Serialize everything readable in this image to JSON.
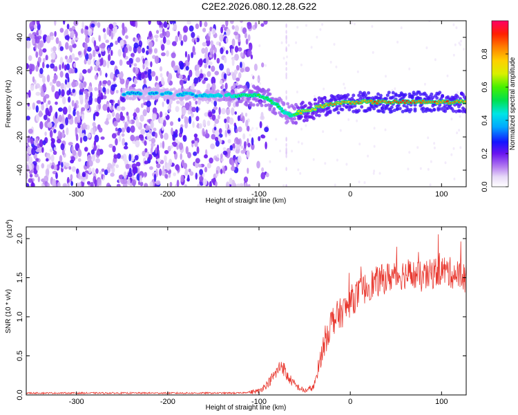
{
  "title": "C2E2.2026.080.12.28.G22",
  "chart_data": [
    {
      "type": "heatmap",
      "xlabel": "Height of straight line (km)",
      "ylabel": "Frequency (Hz)",
      "xlim": [
        -355,
        127
      ],
      "ylim": [
        -50,
        50
      ],
      "xticks": [
        -300,
        -200,
        -100,
        0,
        100
      ],
      "yticks": [
        -40,
        -20,
        0,
        20,
        40
      ],
      "xtick_labels": [
        "-300",
        "-200",
        "-100",
        "0",
        "100"
      ],
      "ytick_labels": [
        "-40",
        "-20",
        "0",
        "20",
        "40"
      ],
      "colorbar": {
        "label": "Normalized spectral amplitude",
        "range": [
          0,
          1
        ],
        "ticks": [
          0.0,
          0.2,
          0.4,
          0.6,
          0.8
        ],
        "tick_labels": [
          "0.0",
          "0.2",
          "0.4",
          "0.6",
          "0.8"
        ]
      },
      "ridge": {
        "description": "dominant frequency track",
        "x": [
          -250,
          -200,
          -150,
          -120,
          -100,
          -90,
          -80,
          -72,
          -65,
          -60,
          -55,
          -45,
          -35,
          -20,
          0,
          40,
          80,
          127
        ],
        "y": [
          6,
          6,
          5,
          5,
          5,
          3,
          -1,
          -5,
          -7,
          -6,
          -5,
          -4,
          -2,
          0,
          1,
          1,
          1,
          1
        ],
        "amplitude": [
          0.35,
          0.35,
          0.4,
          0.55,
          0.6,
          0.6,
          0.55,
          0.5,
          0.55,
          0.6,
          0.85,
          0.8,
          0.85,
          0.9,
          0.9,
          0.95,
          0.95,
          0.9
        ]
      },
      "noise_region": {
        "x_from": -355,
        "x_to": -110
      }
    },
    {
      "type": "line",
      "xlabel": "Height of straight line (km)",
      "ylabel": "SNR (10 * v/v)",
      "scale_label": "(x10",
      "scale_exp": "4",
      "xlim": [
        -355,
        127
      ],
      "ylim": [
        0,
        2.15
      ],
      "xticks": [
        -300,
        -200,
        -100,
        0,
        100
      ],
      "yticks": [
        0.0,
        0.5,
        1.0,
        1.5,
        2.0
      ],
      "xtick_labels": [
        "-300",
        "-200",
        "-100",
        "0",
        "100"
      ],
      "ytick_labels": [
        "0.0",
        "0.5",
        "1.0",
        "1.5",
        "2.0"
      ],
      "series": [
        {
          "name": "SNR",
          "color": "#e8372e",
          "envelope_x": [
            -355,
            -120,
            -100,
            -90,
            -80,
            -75,
            -70,
            -60,
            -50,
            -40,
            -35,
            -30,
            -25,
            -20,
            -15,
            -10,
            -5,
            0,
            10,
            20,
            30,
            40,
            60,
            80,
            100,
            127
          ],
          "envelope_y": [
            0.02,
            0.02,
            0.05,
            0.15,
            0.3,
            0.4,
            0.25,
            0.12,
            0.05,
            0.1,
            0.35,
            0.6,
            0.8,
            0.95,
            1.0,
            1.05,
            1.1,
            1.2,
            1.3,
            1.4,
            1.45,
            1.5,
            1.55,
            1.5,
            1.6,
            1.5
          ],
          "noise_amplitude": 0.2
        }
      ]
    }
  ]
}
